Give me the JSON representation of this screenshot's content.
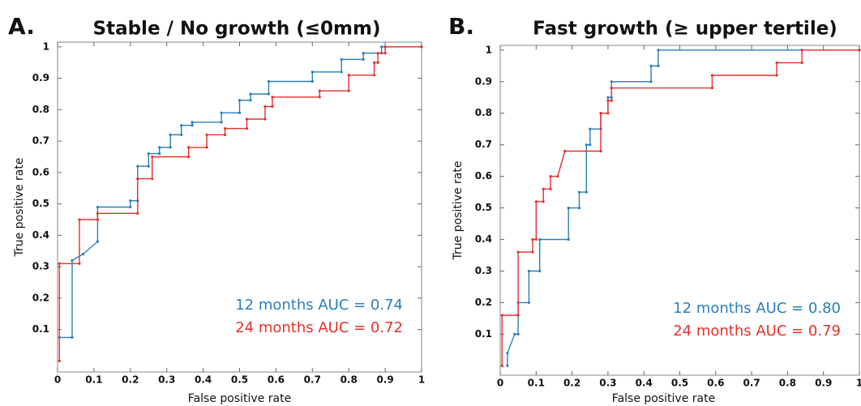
{
  "chart_data": [
    {
      "type": "line",
      "panel_label": "A.",
      "title": "Stable / No growth (≤0mm)",
      "xlabel": "False positive rate",
      "ylabel": "True positive rate",
      "xlim": [
        0,
        1
      ],
      "ylim": [
        -0.035,
        1.015
      ],
      "xticks": [
        0,
        0.1,
        0.2,
        0.3,
        0.4,
        0.5,
        0.6,
        0.7,
        0.8,
        0.9,
        1
      ],
      "yticks": [
        0.1,
        0.2,
        0.3,
        0.4,
        0.5,
        0.6,
        0.7,
        0.8,
        0.9,
        1
      ],
      "grid": false,
      "legend": "lower right",
      "series": [
        {
          "name": "12 months AUC = 0.74",
          "color": "#2a7fba",
          "x": [
            0.005,
            0.04,
            0.04,
            0.07,
            0.11,
            0.11,
            0.2,
            0.2,
            0.22,
            0.22,
            0.25,
            0.25,
            0.28,
            0.28,
            0.31,
            0.31,
            0.34,
            0.34,
            0.37,
            0.37,
            0.45,
            0.45,
            0.5,
            0.5,
            0.53,
            0.53,
            0.58,
            0.58,
            0.7,
            0.7,
            0.78,
            0.78,
            0.84,
            0.84,
            0.89,
            0.89,
            1
          ],
          "values": [
            0.075,
            0.075,
            0.32,
            0.34,
            0.38,
            0.49,
            0.49,
            0.51,
            0.51,
            0.62,
            0.62,
            0.66,
            0.66,
            0.68,
            0.68,
            0.72,
            0.72,
            0.75,
            0.75,
            0.76,
            0.76,
            0.79,
            0.79,
            0.83,
            0.83,
            0.85,
            0.85,
            0.89,
            0.89,
            0.92,
            0.92,
            0.96,
            0.96,
            0.98,
            0.98,
            1,
            1
          ]
        },
        {
          "name": "24 months AUC = 0.72",
          "color": "#e8302a",
          "x": [
            0.005,
            0.005,
            0.06,
            0.06,
            0.11,
            0.11,
            0.22,
            0.22,
            0.26,
            0.26,
            0.36,
            0.36,
            0.41,
            0.41,
            0.46,
            0.46,
            0.52,
            0.52,
            0.57,
            0.57,
            0.59,
            0.59,
            0.72,
            0.72,
            0.8,
            0.8,
            0.87,
            0.87,
            0.88,
            0.88,
            0.9,
            0.9,
            1
          ],
          "values": [
            0,
            0.31,
            0.31,
            0.45,
            0.45,
            0.47,
            0.47,
            0.58,
            0.58,
            0.65,
            0.65,
            0.68,
            0.68,
            0.72,
            0.72,
            0.74,
            0.74,
            0.77,
            0.77,
            0.81,
            0.81,
            0.84,
            0.84,
            0.86,
            0.86,
            0.91,
            0.91,
            0.95,
            0.95,
            0.98,
            0.98,
            1,
            1
          ]
        }
      ]
    },
    {
      "type": "line",
      "panel_label": "B.",
      "title": "Fast growth (≥ upper tertile)",
      "xlabel": "False positive rate",
      "ylabel": "True positive rate",
      "xlim": [
        0,
        1
      ],
      "ylim": [
        -0.03,
        1.015
      ],
      "xticks": [
        0,
        0.1,
        0.2,
        0.3,
        0.4,
        0.5,
        0.6,
        0.7,
        0.8,
        0.9,
        1
      ],
      "yticks": [
        0.1,
        0.2,
        0.3,
        0.4,
        0.5,
        0.6,
        0.7,
        0.8,
        0.9,
        1
      ],
      "grid": false,
      "legend": "lower right",
      "series": [
        {
          "name": "12 months AUC = 0.80",
          "color": "#2a7fba",
          "x": [
            0.02,
            0.02,
            0.04,
            0.05,
            0.05,
            0.08,
            0.08,
            0.11,
            0.11,
            0.19,
            0.19,
            0.22,
            0.22,
            0.24,
            0.24,
            0.25,
            0.25,
            0.28,
            0.28,
            0.3,
            0.3,
            0.31,
            0.31,
            0.42,
            0.42,
            0.44,
            0.44,
            1
          ],
          "values": [
            0,
            0.04,
            0.1,
            0.1,
            0.2,
            0.2,
            0.3,
            0.3,
            0.4,
            0.4,
            0.5,
            0.5,
            0.55,
            0.55,
            0.7,
            0.7,
            0.75,
            0.75,
            0.8,
            0.8,
            0.85,
            0.85,
            0.9,
            0.9,
            0.95,
            0.95,
            1,
            1
          ]
        },
        {
          "name": "24 months AUC = 0.79",
          "color": "#e8302a",
          "x": [
            0.005,
            0.005,
            0.05,
            0.05,
            0.09,
            0.09,
            0.1,
            0.1,
            0.12,
            0.12,
            0.14,
            0.14,
            0.16,
            0.18,
            0.28,
            0.28,
            0.3,
            0.3,
            0.31,
            0.31,
            0.59,
            0.59,
            0.77,
            0.77,
            0.84,
            0.84,
            1
          ],
          "values": [
            0,
            0.16,
            0.16,
            0.36,
            0.36,
            0.4,
            0.4,
            0.52,
            0.52,
            0.56,
            0.56,
            0.6,
            0.6,
            0.68,
            0.68,
            0.8,
            0.8,
            0.84,
            0.84,
            0.88,
            0.88,
            0.92,
            0.92,
            0.96,
            0.96,
            1,
            1
          ]
        }
      ]
    }
  ]
}
